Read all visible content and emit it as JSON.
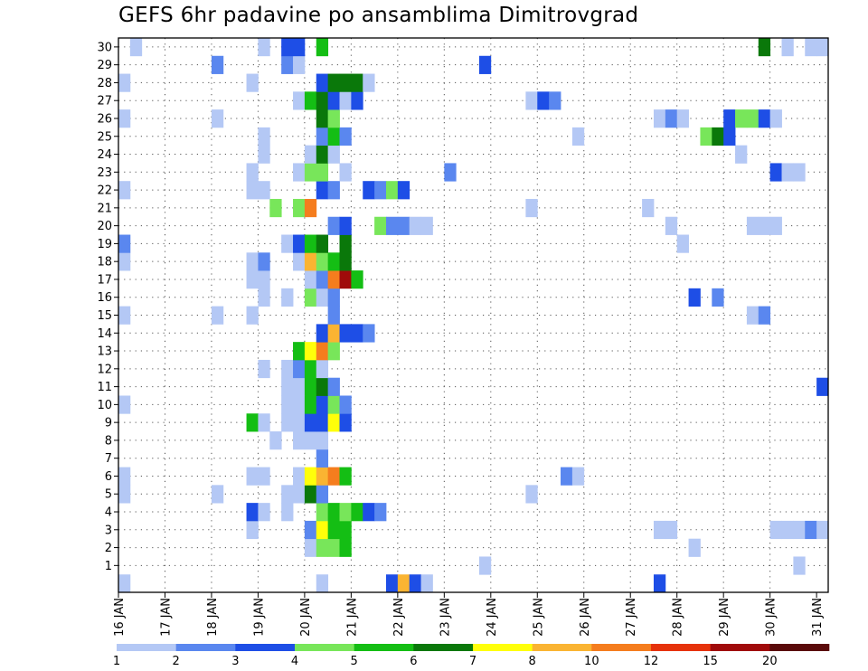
{
  "chart_data": {
    "type": "heatmap",
    "title": "GEFS 6hr padavine po ansamblima Dimitrovgrad",
    "xlabel": "",
    "ylabel": "",
    "x_tick_labels": [
      "16 JAN",
      "17 JAN",
      "18 JAN",
      "19 JAN",
      "20 JAN",
      "21 JAN",
      "22 JAN",
      "23 JAN",
      "24 JAN",
      "25 JAN",
      "26 JAN",
      "27 JAN",
      "28 JAN",
      "29 JAN",
      "30 JAN",
      "31 JAN"
    ],
    "y_tick_labels": [
      "1",
      "2",
      "3",
      "4",
      "5",
      "6",
      "7",
      "8",
      "9",
      "10",
      "11",
      "12",
      "13",
      "14",
      "15",
      "16",
      "17",
      "18",
      "19",
      "20",
      "21",
      "22",
      "23",
      "24",
      "25",
      "26",
      "27",
      "28",
      "29",
      "30"
    ],
    "ylim": [
      0,
      30
    ],
    "time_steps": 61,
    "grid": true,
    "legend": {
      "position": "bottom",
      "labels": [
        "1",
        "2",
        "3",
        "4",
        "5",
        "6",
        "7",
        "8",
        "10",
        "12",
        "15",
        "20"
      ],
      "colors": [
        "#b4c8f5",
        "#5a87ef",
        "#1e4ee6",
        "#78e65a",
        "#14be14",
        "#0a780a",
        "#ffff0a",
        "#fab432",
        "#f57d1e",
        "#e6320a",
        "#a00a0a",
        "#5a0a0a"
      ]
    },
    "class_colors": {
      "1": "#b4c8f5",
      "2": "#5a87ef",
      "3": "#1e4ee6",
      "4": "#78e65a",
      "5": "#14be14",
      "6": "#0a780a",
      "7": "#ffff0a",
      "8": "#fab432",
      "9": "#f57d1e",
      "10": "#e6320a",
      "11": "#a00a0a"
    },
    "rows": {
      "0": [
        [
          0,
          1
        ],
        [
          17,
          1
        ],
        [
          23,
          3
        ],
        [
          24,
          8
        ],
        [
          25,
          3
        ],
        [
          26,
          1
        ],
        [
          46,
          3
        ]
      ],
      "1": [
        [
          31,
          1
        ],
        [
          58,
          1
        ]
      ],
      "2": [
        [
          16,
          1
        ],
        [
          17,
          4
        ],
        [
          18,
          4
        ],
        [
          19,
          5
        ],
        [
          49,
          1
        ]
      ],
      "3": [
        [
          11,
          1
        ],
        [
          16,
          2
        ],
        [
          17,
          7
        ],
        [
          18,
          5
        ],
        [
          19,
          5
        ],
        [
          46,
          1
        ],
        [
          47,
          1
        ],
        [
          56,
          1
        ],
        [
          57,
          1
        ],
        [
          58,
          1
        ],
        [
          59,
          2
        ],
        [
          60,
          1
        ]
      ],
      "4": [
        [
          11,
          3
        ],
        [
          12,
          1
        ],
        [
          14,
          1
        ],
        [
          17,
          4
        ],
        [
          18,
          5
        ],
        [
          19,
          4
        ],
        [
          20,
          5
        ],
        [
          21,
          3
        ],
        [
          22,
          2
        ]
      ],
      "5": [
        [
          0,
          1
        ],
        [
          8,
          1
        ],
        [
          14,
          1
        ],
        [
          15,
          1
        ],
        [
          16,
          6
        ],
        [
          17,
          2
        ],
        [
          35,
          1
        ]
      ],
      "6": [
        [
          0,
          1
        ],
        [
          11,
          1
        ],
        [
          12,
          1
        ],
        [
          15,
          1
        ],
        [
          16,
          7
        ],
        [
          17,
          8
        ],
        [
          18,
          9
        ],
        [
          19,
          5
        ],
        [
          38,
          2
        ],
        [
          39,
          1
        ]
      ],
      "7": [
        [
          17,
          2
        ]
      ],
      "8": [
        [
          13,
          1
        ],
        [
          15,
          1
        ],
        [
          16,
          1
        ],
        [
          17,
          1
        ]
      ],
      "9": [
        [
          11,
          5
        ],
        [
          12,
          1
        ],
        [
          14,
          1
        ],
        [
          15,
          1
        ],
        [
          16,
          3
        ],
        [
          17,
          3
        ],
        [
          18,
          7
        ],
        [
          19,
          3
        ]
      ],
      "10": [
        [
          0,
          1
        ],
        [
          14,
          1
        ],
        [
          15,
          1
        ],
        [
          16,
          5
        ],
        [
          17,
          3
        ],
        [
          18,
          4
        ],
        [
          19,
          2
        ]
      ],
      "11": [
        [
          14,
          1
        ],
        [
          15,
          1
        ],
        [
          16,
          5
        ],
        [
          17,
          6
        ],
        [
          18,
          2
        ],
        [
          60,
          3
        ]
      ],
      "12": [
        [
          12,
          1
        ],
        [
          14,
          1
        ],
        [
          15,
          2
        ],
        [
          16,
          5
        ],
        [
          17,
          1
        ]
      ],
      "13": [
        [
          15,
          5
        ],
        [
          16,
          7
        ],
        [
          17,
          9
        ],
        [
          18,
          4
        ]
      ],
      "14": [
        [
          17,
          3
        ],
        [
          18,
          8
        ],
        [
          19,
          3
        ],
        [
          20,
          3
        ],
        [
          21,
          2
        ]
      ],
      "15": [
        [
          0,
          1
        ],
        [
          8,
          1
        ],
        [
          11,
          1
        ],
        [
          18,
          2
        ],
        [
          54,
          1
        ],
        [
          55,
          2
        ]
      ],
      "16": [
        [
          12,
          1
        ],
        [
          14,
          1
        ],
        [
          16,
          4
        ],
        [
          17,
          1
        ],
        [
          18,
          2
        ],
        [
          49,
          3
        ],
        [
          51,
          2
        ]
      ],
      "17": [
        [
          11,
          1
        ],
        [
          12,
          1
        ],
        [
          16,
          1
        ],
        [
          17,
          2
        ],
        [
          18,
          9
        ],
        [
          19,
          11
        ],
        [
          20,
          5
        ]
      ],
      "18": [
        [
          0,
          1
        ],
        [
          11,
          1
        ],
        [
          12,
          2
        ],
        [
          15,
          1
        ],
        [
          16,
          8
        ],
        [
          17,
          4
        ],
        [
          18,
          5
        ],
        [
          19,
          6
        ]
      ],
      "19": [
        [
          0,
          2
        ],
        [
          14,
          1
        ],
        [
          15,
          3
        ],
        [
          16,
          5
        ],
        [
          17,
          6
        ],
        [
          19,
          6
        ],
        [
          48,
          1
        ]
      ],
      "20": [
        [
          18,
          2
        ],
        [
          19,
          3
        ],
        [
          22,
          4
        ],
        [
          23,
          2
        ],
        [
          24,
          2
        ],
        [
          25,
          1
        ],
        [
          26,
          1
        ],
        [
          47,
          1
        ],
        [
          54,
          1
        ],
        [
          55,
          1
        ],
        [
          56,
          1
        ]
      ],
      "21": [
        [
          13,
          4
        ],
        [
          15,
          4
        ],
        [
          16,
          9
        ],
        [
          35,
          1
        ],
        [
          45,
          1
        ]
      ],
      "22": [
        [
          0,
          1
        ],
        [
          11,
          1
        ],
        [
          12,
          1
        ],
        [
          17,
          3
        ],
        [
          18,
          2
        ],
        [
          21,
          3
        ],
        [
          22,
          2
        ],
        [
          23,
          4
        ],
        [
          24,
          3
        ]
      ],
      "23": [
        [
          11,
          1
        ],
        [
          15,
          1
        ],
        [
          16,
          4
        ],
        [
          17,
          4
        ],
        [
          19,
          1
        ],
        [
          28,
          2
        ],
        [
          56,
          3
        ],
        [
          57,
          1
        ],
        [
          58,
          1
        ]
      ],
      "24": [
        [
          12,
          1
        ],
        [
          16,
          1
        ],
        [
          17,
          6
        ],
        [
          18,
          1
        ],
        [
          53,
          1
        ]
      ],
      "25": [
        [
          12,
          1
        ],
        [
          17,
          2
        ],
        [
          18,
          5
        ],
        [
          19,
          2
        ],
        [
          39,
          1
        ],
        [
          50,
          4
        ],
        [
          51,
          6
        ],
        [
          52,
          3
        ]
      ],
      "26": [
        [
          0,
          1
        ],
        [
          8,
          1
        ],
        [
          17,
          6
        ],
        [
          18,
          4
        ],
        [
          46,
          1
        ],
        [
          47,
          2
        ],
        [
          48,
          1
        ],
        [
          52,
          3
        ],
        [
          53,
          4
        ],
        [
          54,
          4
        ],
        [
          55,
          3
        ],
        [
          56,
          1
        ]
      ],
      "27": [
        [
          15,
          1
        ],
        [
          16,
          5
        ],
        [
          17,
          6
        ],
        [
          18,
          3
        ],
        [
          19,
          1
        ],
        [
          20,
          3
        ],
        [
          35,
          1
        ],
        [
          36,
          3
        ],
        [
          37,
          2
        ]
      ],
      "28": [
        [
          0,
          1
        ],
        [
          11,
          1
        ],
        [
          17,
          3
        ],
        [
          18,
          6
        ],
        [
          19,
          6
        ],
        [
          20,
          6
        ],
        [
          21,
          1
        ]
      ],
      "29": [
        [
          8,
          2
        ],
        [
          14,
          2
        ],
        [
          15,
          1
        ],
        [
          31,
          3
        ]
      ],
      "30": [
        [
          1,
          1
        ],
        [
          12,
          1
        ],
        [
          14,
          3
        ],
        [
          15,
          3
        ],
        [
          17,
          5
        ],
        [
          55,
          6
        ],
        [
          57,
          1
        ],
        [
          59,
          1
        ],
        [
          60,
          1
        ]
      ]
    }
  }
}
